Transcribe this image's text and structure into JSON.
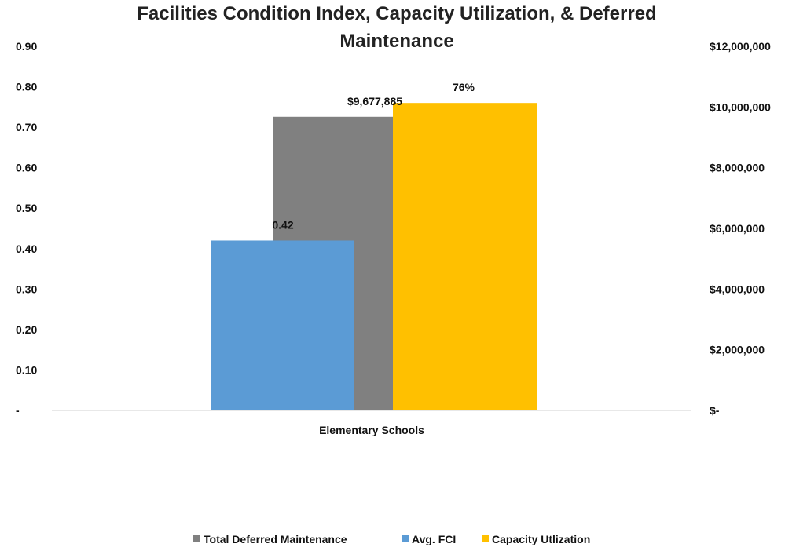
{
  "chart_data": {
    "type": "bar",
    "title_lines": [
      "Facilities Condition Index, Capacity Utilization, & Deferred",
      "Maintenance"
    ],
    "categories": [
      "Elementary Schools"
    ],
    "y_left": {
      "ylim": [
        0,
        0.9
      ],
      "ticks": [
        0,
        0.1,
        0.2,
        0.3,
        0.4,
        0.5,
        0.6,
        0.7,
        0.8,
        0.9
      ],
      "tick_labels": [
        "-",
        "0.10",
        "0.20",
        "0.30",
        "0.40",
        "0.50",
        "0.60",
        "0.70",
        "0.80",
        "0.90"
      ]
    },
    "y_right": {
      "ylim": [
        0,
        12000000
      ],
      "ticks": [
        0,
        2000000,
        4000000,
        6000000,
        8000000,
        10000000,
        12000000
      ],
      "tick_labels": [
        "$-",
        "$2,000,000",
        "$4,000,000",
        "$6,000,000",
        "$8,000,000",
        "$10,000,000",
        "$12,000,000"
      ]
    },
    "series": [
      {
        "name": "Total Deferred Maintenance",
        "axis": "right",
        "values": [
          9677885
        ],
        "data_label": "$9,677,885",
        "color": "#808080"
      },
      {
        "name": "Avg. FCI",
        "axis": "left",
        "values": [
          0.42
        ],
        "data_label": "0.42",
        "color": "#5B9BD5"
      },
      {
        "name": "Capacity Utlization",
        "axis": "left",
        "values": [
          0.76
        ],
        "data_label": "76%",
        "color": "#FFC000"
      }
    ],
    "grid": false,
    "legend_position": "bottom"
  }
}
